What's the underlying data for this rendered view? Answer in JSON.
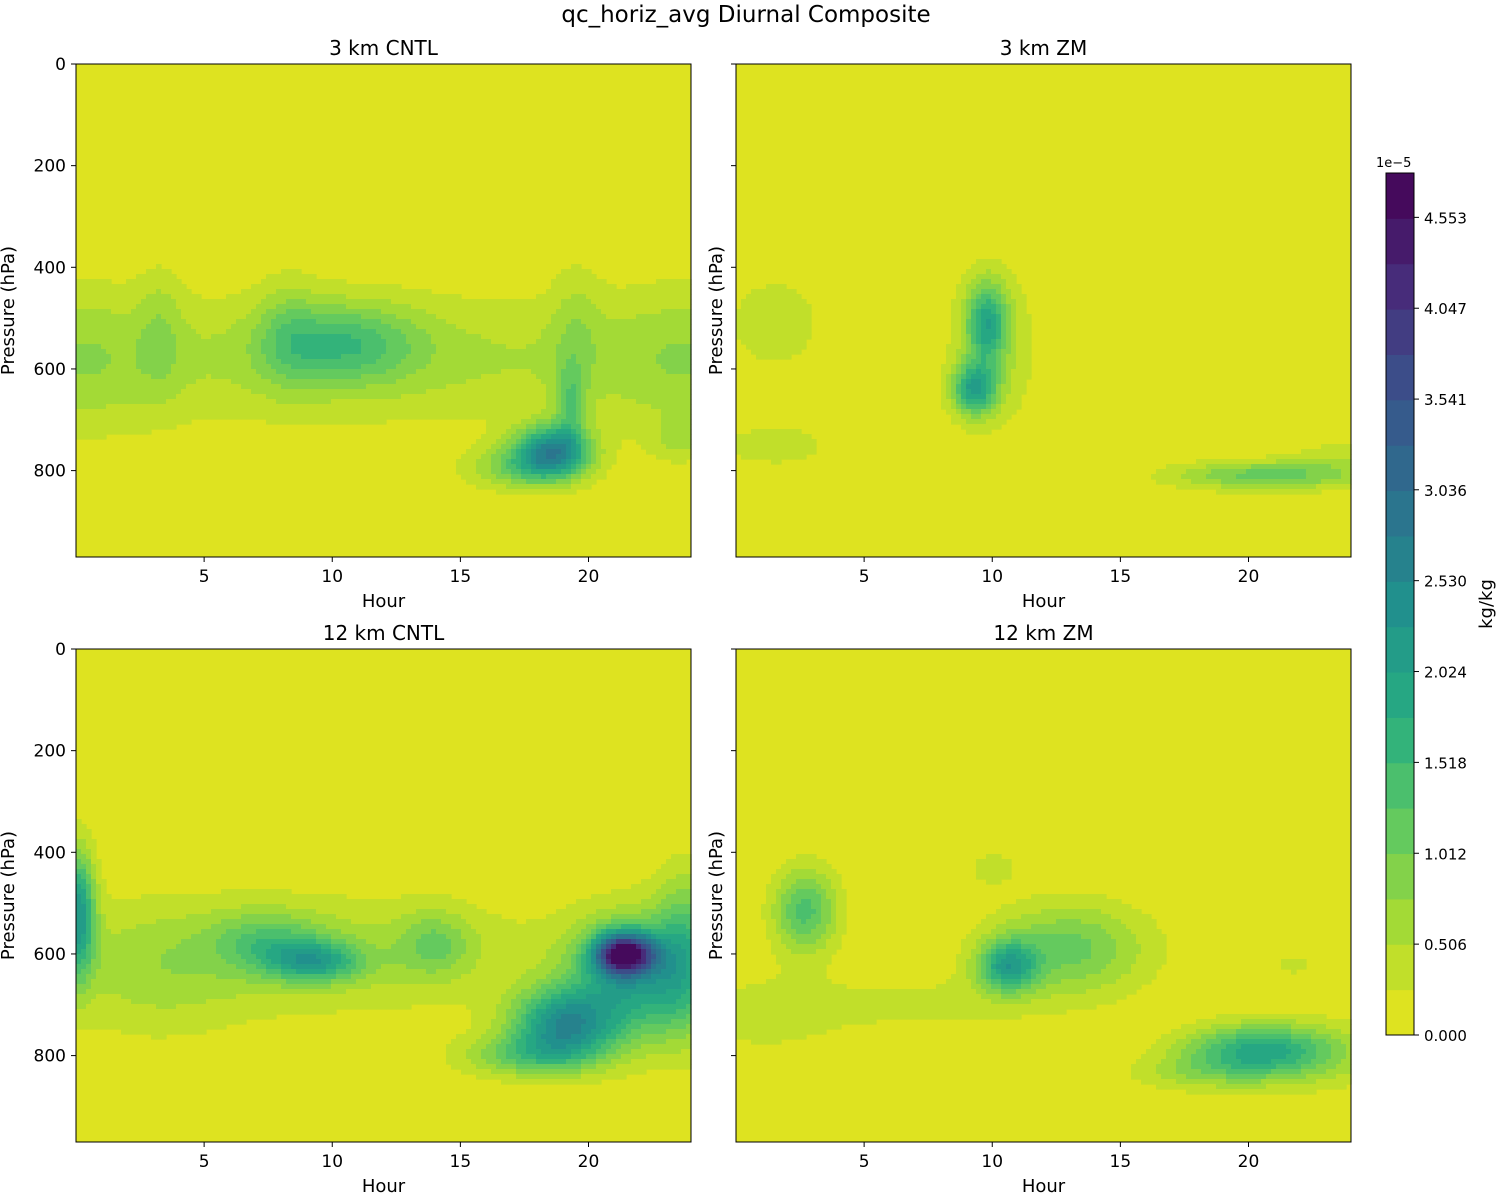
{
  "figure": {
    "title": "qc_horiz_avg Diurnal Composite"
  },
  "chart_data": {
    "type": "heatmap",
    "title": "qc_horiz_avg Diurnal Composite",
    "xlabel": "Hour",
    "ylabel": "Pressure (hPa)",
    "xlim": [
      0,
      24
    ],
    "ylim": [
      970,
      0
    ],
    "x_ticks": [
      "5",
      "10",
      "15",
      "20"
    ],
    "y_ticks": [
      "0",
      "200",
      "400",
      "600",
      "800"
    ],
    "colorbar": {
      "label": "kg/kg",
      "offset_text": "1e−5",
      "range": [
        0,
        4.8
      ],
      "levels": 19,
      "tick_values": [
        0.0,
        0.506,
        1.012,
        1.518,
        2.024,
        2.53,
        3.036,
        3.541,
        4.047,
        4.553
      ],
      "tick_labels": [
        "0.000",
        "0.506",
        "1.012",
        "1.518",
        "2.024",
        "2.530",
        "3.036",
        "3.541",
        "4.047",
        "4.553"
      ],
      "colormap": "viridis (reversed)",
      "low_color": "#ede51b",
      "high_color": "#440154"
    },
    "panels": [
      {
        "title": "3 km CNTL",
        "blobs": [
          {
            "h": 12,
            "p": 580,
            "sh": 12,
            "sp": 95,
            "a": 0.55
          },
          {
            "h": 0,
            "p": 580,
            "sh": 2.5,
            "sp": 110,
            "a": 0.45
          },
          {
            "h": 24,
            "p": 580,
            "sh": 2.5,
            "sp": 110,
            "a": 0.45
          },
          {
            "h": 10.5,
            "p": 550,
            "sh": 2.0,
            "sp": 55,
            "a": 1.05
          },
          {
            "h": 8.3,
            "p": 530,
            "sh": 0.9,
            "sp": 80,
            "a": 0.45
          },
          {
            "h": 3.3,
            "p": 520,
            "sh": 0.6,
            "sp": 90,
            "a": 0.35
          },
          {
            "h": 19.5,
            "p": 520,
            "sh": 0.7,
            "sp": 100,
            "a": 0.35
          },
          {
            "h": 18.6,
            "p": 760,
            "sh": 1.0,
            "sp": 35,
            "a": 2.3
          },
          {
            "h": 17.5,
            "p": 795,
            "sh": 1.5,
            "sp": 30,
            "a": 1.0
          },
          {
            "h": 19.3,
            "p": 670,
            "sh": 0.4,
            "sp": 55,
            "a": 0.8
          },
          {
            "h": 23.5,
            "p": 740,
            "sh": 0.8,
            "sp": 30,
            "a": 0.4
          }
        ]
      },
      {
        "title": "3 km ZM",
        "blobs": [
          {
            "h": 9.8,
            "p": 510,
            "sh": 0.55,
            "sp": 55,
            "a": 1.6
          },
          {
            "h": 9.3,
            "p": 640,
            "sh": 0.6,
            "sp": 35,
            "a": 1.8
          },
          {
            "h": 10.0,
            "p": 560,
            "sh": 1.3,
            "sp": 120,
            "a": 0.5
          },
          {
            "h": 1.5,
            "p": 510,
            "sh": 1.4,
            "sp": 70,
            "a": 0.45
          },
          {
            "h": 1.5,
            "p": 750,
            "sh": 1.6,
            "sp": 30,
            "a": 0.45
          },
          {
            "h": 20.5,
            "p": 810,
            "sh": 2.5,
            "sp": 20,
            "a": 1.1
          },
          {
            "h": 23.5,
            "p": 780,
            "sh": 1.5,
            "sp": 30,
            "a": 0.4
          }
        ]
      },
      {
        "title": "12 km CNTL",
        "blobs": [
          {
            "h": 9,
            "p": 600,
            "sh": 7,
            "sp": 85,
            "a": 0.6
          },
          {
            "h": 7.5,
            "p": 575,
            "sh": 1.5,
            "sp": 40,
            "a": 0.8
          },
          {
            "h": 9.3,
            "p": 615,
            "sh": 1.3,
            "sp": 28,
            "a": 1.5
          },
          {
            "h": 0.1,
            "p": 520,
            "sh": 0.45,
            "sp": 90,
            "a": 2.0
          },
          {
            "h": 14.0,
            "p": 580,
            "sh": 1.0,
            "sp": 45,
            "a": 0.7
          },
          {
            "h": 21.4,
            "p": 600,
            "sh": 0.8,
            "sp": 28,
            "a": 3.8
          },
          {
            "h": 21.7,
            "p": 650,
            "sh": 1.7,
            "sp": 85,
            "a": 1.8
          },
          {
            "h": 19.0,
            "p": 740,
            "sh": 1.4,
            "sp": 50,
            "a": 2.2
          },
          {
            "h": 17.5,
            "p": 800,
            "sh": 1.8,
            "sp": 30,
            "a": 1.0
          },
          {
            "h": 23.8,
            "p": 600,
            "sh": 0.9,
            "sp": 110,
            "a": 1.2
          },
          {
            "h": 3,
            "p": 650,
            "sh": 2.5,
            "sp": 100,
            "a": 0.35
          }
        ]
      },
      {
        "title": "12 km ZM",
        "blobs": [
          {
            "h": 2.7,
            "p": 515,
            "sh": 0.9,
            "sp": 60,
            "a": 1.35
          },
          {
            "h": 1.0,
            "p": 720,
            "sh": 2.2,
            "sp": 60,
            "a": 0.35
          },
          {
            "h": 10.6,
            "p": 625,
            "sh": 0.8,
            "sp": 35,
            "a": 1.7
          },
          {
            "h": 13,
            "p": 590,
            "sh": 2.2,
            "sp": 65,
            "a": 1.1
          },
          {
            "h": 10,
            "p": 430,
            "sh": 0.7,
            "sp": 25,
            "a": 0.4
          },
          {
            "h": 7.0,
            "p": 700,
            "sh": 3.5,
            "sp": 45,
            "a": 0.3
          },
          {
            "h": 20.3,
            "p": 790,
            "sh": 2.0,
            "sp": 35,
            "a": 1.6
          },
          {
            "h": 22.5,
            "p": 800,
            "sh": 2.5,
            "sp": 50,
            "a": 0.5
          },
          {
            "h": 18.0,
            "p": 835,
            "sh": 2.0,
            "sp": 25,
            "a": 0.5
          },
          {
            "h": 21.8,
            "p": 620,
            "sh": 0.7,
            "sp": 18,
            "a": 0.35
          }
        ]
      }
    ]
  }
}
